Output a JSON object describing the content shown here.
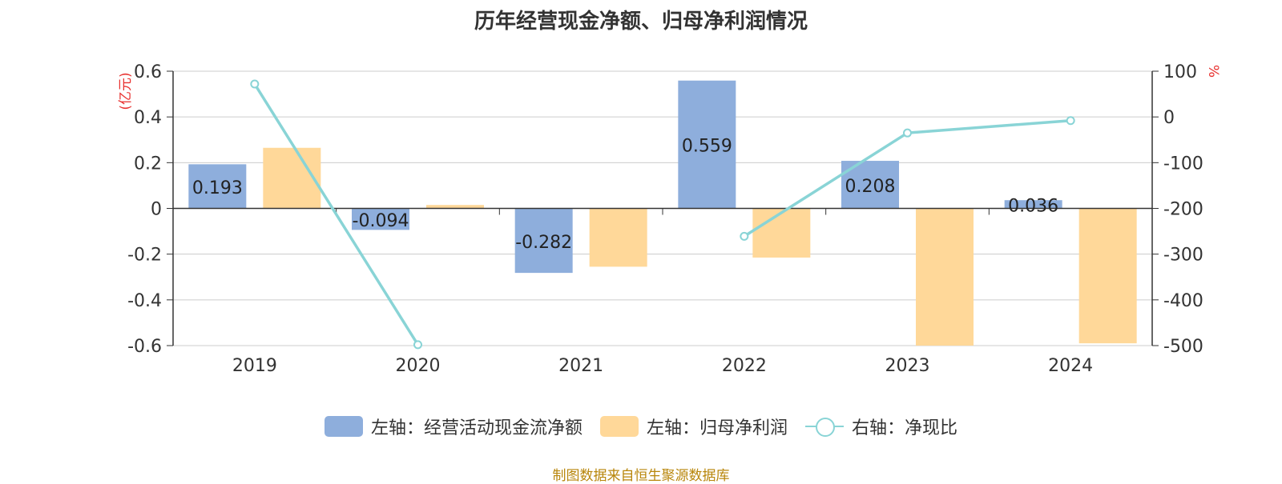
{
  "title": "历年经营现金净额、归母净利润情况",
  "source": "制图数据来自恒生聚源数据库",
  "legend": {
    "item1": "左轴：经营活动现金流净额",
    "item2": "左轴：归母净利润",
    "item3": "右轴：净现比"
  },
  "colors": {
    "cash_flow": "#8eaedc",
    "net_profit": "#ffd899",
    "ratio": "#89d4d6",
    "unit_label": "#e8312f"
  },
  "chart_data": {
    "type": "bar",
    "categories": [
      "2019",
      "2020",
      "2021",
      "2022",
      "2023",
      "2024"
    ],
    "left_axis": {
      "unit": "(亿元)",
      "ylim": [
        -0.6,
        0.6
      ],
      "ticks": [
        "0.6",
        "0.4",
        "0.2",
        "0",
        "-0.2",
        "-0.4",
        "-0.6"
      ]
    },
    "right_axis": {
      "unit": "%",
      "ylim": [
        -500,
        100
      ],
      "ticks": [
        "100",
        "0",
        "-100",
        "-200",
        "-300",
        "-400",
        "-500"
      ]
    },
    "grid": true,
    "legend_position": "bottom",
    "series": [
      {
        "name": "左轴：经营活动现金流净额",
        "type": "bar",
        "axis": "left",
        "values": [
          0.193,
          -0.094,
          -0.282,
          0.559,
          0.208,
          0.036
        ],
        "labels": [
          "0.193",
          "-0.094",
          "-0.282",
          "0.559",
          "0.208",
          "0.036"
        ]
      },
      {
        "name": "左轴：归母净利润",
        "type": "bar",
        "axis": "left",
        "values": [
          0.265,
          0.015,
          -0.255,
          -0.215,
          -0.6,
          -0.59
        ]
      },
      {
        "name": "右轴：净现比",
        "type": "line",
        "axis": "right",
        "values": [
          72,
          -498,
          null,
          -261,
          -35,
          -8
        ]
      }
    ]
  }
}
